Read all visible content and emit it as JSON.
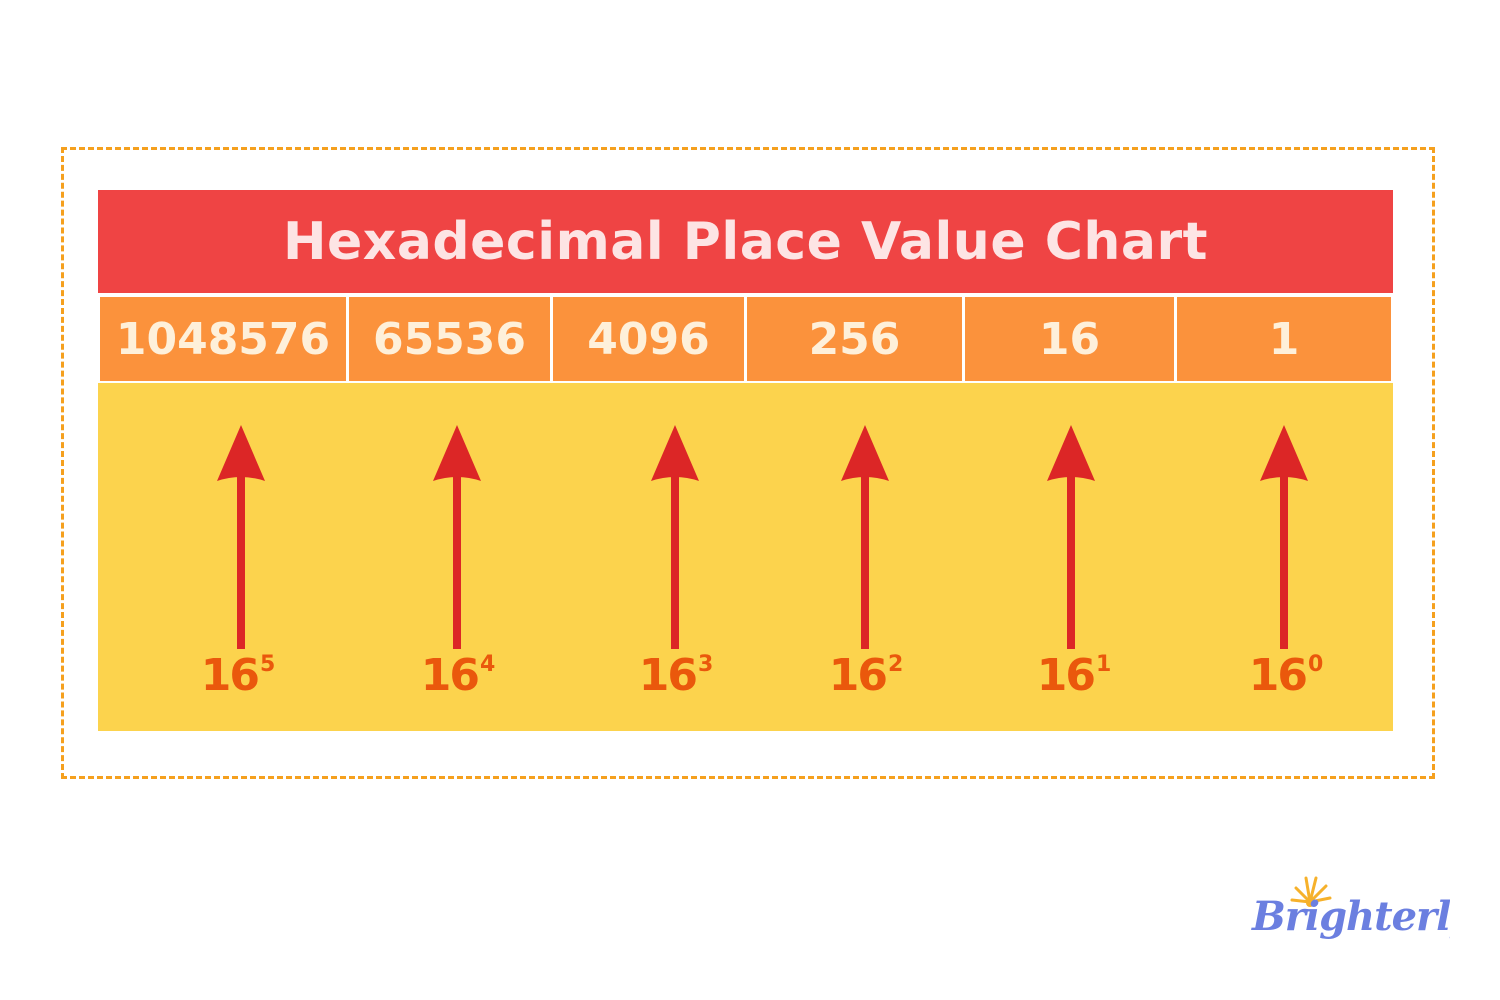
{
  "title": "Hexadecimal Place Value Chart",
  "place_values": [
    "1048576",
    "65536",
    "4096",
    "256",
    "16",
    "1"
  ],
  "powers": [
    {
      "base": "16",
      "exponent": "5"
    },
    {
      "base": "16",
      "exponent": "4"
    },
    {
      "base": "16",
      "exponent": "3"
    },
    {
      "base": "16",
      "exponent": "2"
    },
    {
      "base": "16",
      "exponent": "1"
    },
    {
      "base": "16",
      "exponent": "0"
    }
  ],
  "logo": {
    "text": "Brighterly",
    "icon": "sun-icon"
  },
  "colors": {
    "title_bg": "#EF4444",
    "value_bg": "#FB923C",
    "panel_bg": "#FCD34D",
    "arrow": "#DC2626",
    "power_text": "#EA580C",
    "frame": "#F5A01E",
    "logo": "#6B7FE0",
    "sun": "#F6B12B"
  }
}
